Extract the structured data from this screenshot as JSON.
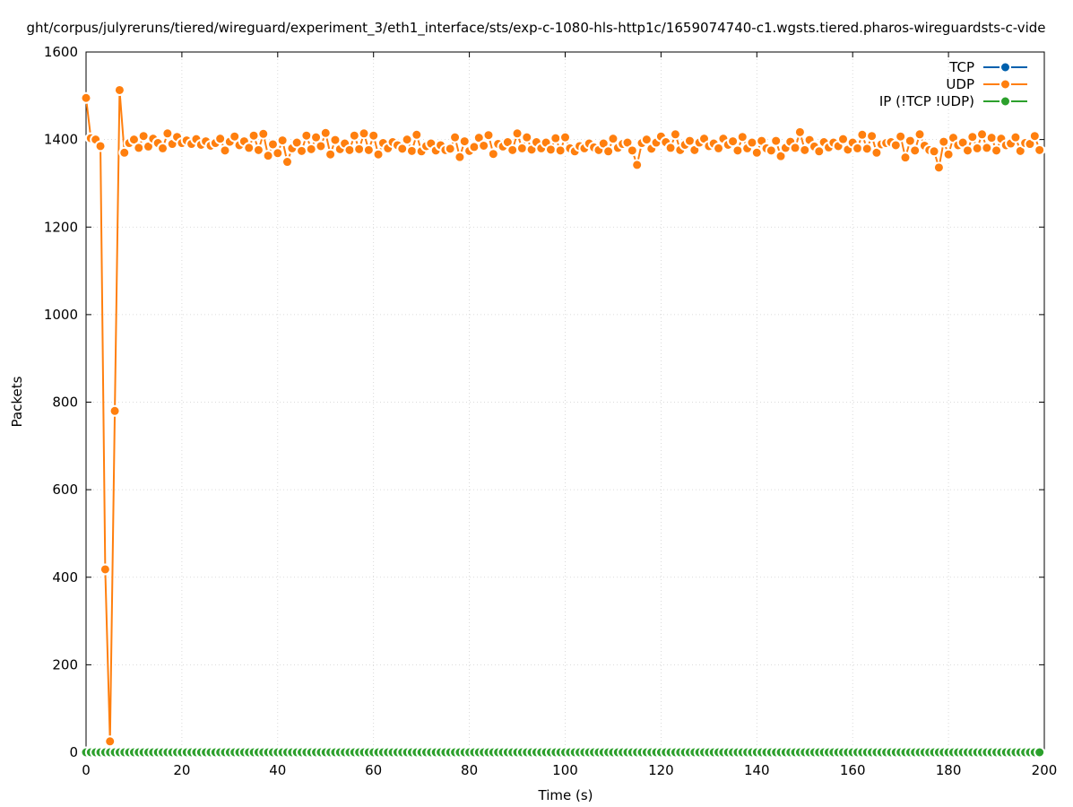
{
  "chart_data": {
    "type": "line",
    "title": "ght/corpus/julyreruns/tiered/wireguard/experiment_3/eth1_interface/sts/exp-c-1080-hls-http1c/1659074740-c1.wgsts.tiered.pharos-wireguardsts-c-vide",
    "xlabel": "Time (s)",
    "ylabel": "Packets",
    "xlim": [
      0,
      200
    ],
    "ylim": [
      0,
      1600
    ],
    "x_ticks": [
      "0",
      "20",
      "40",
      "60",
      "80",
      "100",
      "120",
      "140",
      "160",
      "180",
      "200"
    ],
    "y_ticks": [
      "0",
      "200",
      "400",
      "600",
      "800",
      "1000",
      "1200",
      "1400",
      "1600"
    ],
    "grid": true,
    "legend_position": "top-right",
    "series": [
      {
        "name": "TCP",
        "color": "#0060ad",
        "x": [],
        "y": []
      },
      {
        "name": "UDP",
        "color": "#ff7f0e",
        "x": [
          0,
          1,
          2,
          3,
          4,
          5,
          6,
          7,
          8,
          9,
          10,
          11,
          12,
          13,
          14,
          15,
          16,
          17,
          18,
          19,
          20,
          21,
          22,
          23,
          24,
          25,
          26,
          27,
          28,
          29,
          30,
          31,
          32,
          33,
          34,
          35,
          36,
          37,
          38,
          39,
          40,
          41,
          42,
          43,
          44,
          45,
          46,
          47,
          48,
          49,
          50,
          51,
          52,
          53,
          54,
          55,
          56,
          57,
          58,
          59,
          60,
          61,
          62,
          63,
          64,
          65,
          66,
          67,
          68,
          69,
          70,
          71,
          72,
          73,
          74,
          75,
          76,
          77,
          78,
          79,
          80,
          81,
          82,
          83,
          84,
          85,
          86,
          87,
          88,
          89,
          90,
          91,
          92,
          93,
          94,
          95,
          96,
          97,
          98,
          99,
          100,
          101,
          102,
          103,
          104,
          105,
          106,
          107,
          108,
          109,
          110,
          111,
          112,
          113,
          114,
          115,
          116,
          117,
          118,
          119,
          120,
          121,
          122,
          123,
          124,
          125,
          126,
          127,
          128,
          129,
          130,
          131,
          132,
          133,
          134,
          135,
          136,
          137,
          138,
          139,
          140,
          141,
          142,
          143,
          144,
          145,
          146,
          147,
          148,
          149,
          150,
          151,
          152,
          153,
          154,
          155,
          156,
          157,
          158,
          159,
          160,
          161,
          162,
          163,
          164,
          165,
          166,
          167,
          168,
          169,
          170,
          171,
          172,
          173,
          174,
          175,
          176,
          177,
          178,
          179,
          180,
          181,
          182,
          183,
          184,
          185,
          186,
          187,
          188,
          189,
          190,
          191,
          192,
          193,
          194,
          195,
          196,
          197,
          198,
          199
        ],
        "y": [
          1495,
          1403,
          1400,
          1385,
          418,
          25,
          780,
          1513,
          1370,
          1392,
          1400,
          1381,
          1408,
          1384,
          1402,
          1392,
          1380,
          1414,
          1390,
          1406,
          1392,
          1398,
          1390,
          1401,
          1388,
          1396,
          1386,
          1392,
          1402,
          1375,
          1395,
          1407,
          1387,
          1396,
          1381,
          1409,
          1376,
          1413,
          1363,
          1389,
          1369,
          1398,
          1349,
          1380,
          1393,
          1374,
          1409,
          1378,
          1405,
          1385,
          1415,
          1366,
          1399,
          1378,
          1391,
          1376,
          1409,
          1378,
          1414,
          1376,
          1409,
          1366,
          1392,
          1380,
          1394,
          1387,
          1379,
          1400,
          1374,
          1411,
          1373,
          1385,
          1391,
          1375,
          1387,
          1376,
          1379,
          1405,
          1360,
          1396,
          1374,
          1383,
          1404,
          1386,
          1410,
          1367,
          1390,
          1384,
          1394,
          1376,
          1414,
          1380,
          1405,
          1377,
          1394,
          1380,
          1393,
          1377,
          1403,
          1375,
          1405,
          1380,
          1373,
          1385,
          1380,
          1391,
          1382,
          1376,
          1391,
          1373,
          1402,
          1381,
          1390,
          1393,
          1375,
          1342,
          1392,
          1400,
          1379,
          1393,
          1407,
          1394,
          1381,
          1412,
          1376,
          1388,
          1397,
          1376,
          1393,
          1402,
          1385,
          1391,
          1380,
          1402,
          1388,
          1396,
          1375,
          1406,
          1380,
          1393,
          1370,
          1397,
          1380,
          1375,
          1397,
          1362,
          1381,
          1395,
          1381,
          1417,
          1376,
          1399,
          1384,
          1373,
          1394,
          1382,
          1393,
          1385,
          1401,
          1377,
          1393,
          1380,
          1411,
          1379,
          1408,
          1370,
          1389,
          1392,
          1394,
          1387,
          1407,
          1359,
          1397,
          1375,
          1412,
          1386,
          1376,
          1373,
          1336,
          1395,
          1366,
          1404,
          1387,
          1393,
          1375,
          1406,
          1380,
          1412,
          1381,
          1404,
          1375,
          1402,
          1387,
          1391,
          1405,
          1374,
          1392,
          1390,
          1408,
          1376
        ]
      },
      {
        "name": "IP (!TCP  !UDP)",
        "color": "#2ca02c",
        "x": [
          0,
          1,
          2,
          3,
          4,
          5,
          6,
          7,
          8,
          9,
          10,
          11,
          12,
          13,
          14,
          15,
          16,
          17,
          18,
          19,
          20,
          21,
          22,
          23,
          24,
          25,
          26,
          27,
          28,
          29,
          30,
          31,
          32,
          33,
          34,
          35,
          36,
          37,
          38,
          39,
          40,
          41,
          42,
          43,
          44,
          45,
          46,
          47,
          48,
          49,
          50,
          51,
          52,
          53,
          54,
          55,
          56,
          57,
          58,
          59,
          60,
          61,
          62,
          63,
          64,
          65,
          66,
          67,
          68,
          69,
          70,
          71,
          72,
          73,
          74,
          75,
          76,
          77,
          78,
          79,
          80,
          81,
          82,
          83,
          84,
          85,
          86,
          87,
          88,
          89,
          90,
          91,
          92,
          93,
          94,
          95,
          96,
          97,
          98,
          99,
          100,
          101,
          102,
          103,
          104,
          105,
          106,
          107,
          108,
          109,
          110,
          111,
          112,
          113,
          114,
          115,
          116,
          117,
          118,
          119,
          120,
          121,
          122,
          123,
          124,
          125,
          126,
          127,
          128,
          129,
          130,
          131,
          132,
          133,
          134,
          135,
          136,
          137,
          138,
          139,
          140,
          141,
          142,
          143,
          144,
          145,
          146,
          147,
          148,
          149,
          150,
          151,
          152,
          153,
          154,
          155,
          156,
          157,
          158,
          159,
          160,
          161,
          162,
          163,
          164,
          165,
          166,
          167,
          168,
          169,
          170,
          171,
          172,
          173,
          174,
          175,
          176,
          177,
          178,
          179,
          180,
          181,
          182,
          183,
          184,
          185,
          186,
          187,
          188,
          189,
          190,
          191,
          192,
          193,
          194,
          195,
          196,
          197,
          198,
          199
        ],
        "y": [
          0,
          0,
          0,
          0,
          0,
          0,
          0,
          0,
          0,
          0,
          0,
          0,
          0,
          0,
          0,
          0,
          0,
          0,
          0,
          0,
          0,
          0,
          0,
          0,
          0,
          0,
          0,
          0,
          0,
          0,
          0,
          0,
          0,
          0,
          0,
          0,
          0,
          0,
          0,
          0,
          0,
          0,
          0,
          0,
          0,
          0,
          0,
          0,
          0,
          0,
          0,
          0,
          0,
          0,
          0,
          0,
          0,
          0,
          0,
          0,
          0,
          0,
          0,
          0,
          0,
          0,
          0,
          0,
          0,
          0,
          0,
          0,
          0,
          0,
          0,
          0,
          0,
          0,
          0,
          0,
          0,
          0,
          0,
          0,
          0,
          0,
          0,
          0,
          0,
          0,
          0,
          0,
          0,
          0,
          0,
          0,
          0,
          0,
          0,
          0,
          0,
          0,
          0,
          0,
          0,
          0,
          0,
          0,
          0,
          0,
          0,
          0,
          0,
          0,
          0,
          0,
          0,
          0,
          0,
          0,
          0,
          0,
          0,
          0,
          0,
          0,
          0,
          0,
          0,
          0,
          0,
          0,
          0,
          0,
          0,
          0,
          0,
          0,
          0,
          0,
          0,
          0,
          0,
          0,
          0,
          0,
          0,
          0,
          0,
          0,
          0,
          0,
          0,
          0,
          0,
          0,
          0,
          0,
          0,
          0,
          0,
          0,
          0,
          0,
          0,
          0,
          0,
          0,
          0,
          0,
          0,
          0,
          0,
          0,
          0,
          0,
          0,
          0,
          0,
          0,
          0,
          0,
          0,
          0,
          0,
          0,
          0,
          0,
          0,
          0,
          0,
          0,
          0,
          0,
          0,
          0,
          0,
          0,
          0,
          0
        ]
      }
    ]
  }
}
